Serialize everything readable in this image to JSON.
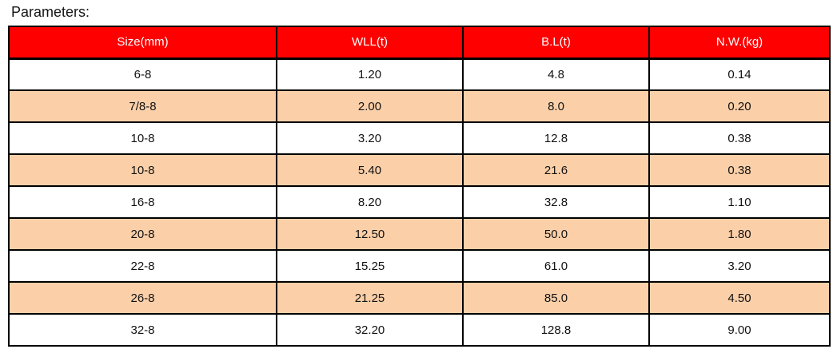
{
  "page_title": "Parameters:",
  "table": {
    "columns": [
      "Size(mm)",
      "WLL(t)",
      "B.L(t)",
      "N.W.(kg)"
    ],
    "rows": [
      [
        "6-8",
        "1.20",
        "4.8",
        "0.14"
      ],
      [
        "7/8-8",
        "2.00",
        "8.0",
        "0.20"
      ],
      [
        "10-8",
        "3.20",
        "12.8",
        "0.38"
      ],
      [
        "10-8",
        "5.40",
        "21.6",
        "0.38"
      ],
      [
        "16-8",
        "8.20",
        "32.8",
        "1.10"
      ],
      [
        "20-8",
        "12.50",
        "50.0",
        "1.80"
      ],
      [
        "22-8",
        "15.25",
        "61.0",
        "3.20"
      ],
      [
        "26-8",
        "21.25",
        "85.0",
        "4.50"
      ],
      [
        "32-8",
        "32.20",
        "128.8",
        "9.00"
      ]
    ],
    "colors": {
      "header_bg": "#fe0000",
      "header_text": "#ffffff",
      "row_bg": "#ffffff",
      "row_alt_bg": "#fbd0a9",
      "border": "#000000"
    }
  },
  "chart_data": {
    "type": "table",
    "title": "Parameters:",
    "columns": [
      "Size(mm)",
      "WLL(t)",
      "B.L(t)",
      "N.W.(kg)"
    ],
    "rows": [
      [
        "6-8",
        "1.20",
        "4.8",
        "0.14"
      ],
      [
        "7/8-8",
        "2.00",
        "8.0",
        "0.20"
      ],
      [
        "10-8",
        "3.20",
        "12.8",
        "0.38"
      ],
      [
        "10-8",
        "5.40",
        "21.6",
        "0.38"
      ],
      [
        "16-8",
        "8.20",
        "32.8",
        "1.10"
      ],
      [
        "20-8",
        "12.50",
        "50.0",
        "1.80"
      ],
      [
        "22-8",
        "15.25",
        "61.0",
        "3.20"
      ],
      [
        "26-8",
        "21.25",
        "85.0",
        "4.50"
      ],
      [
        "32-8",
        "32.20",
        "128.8",
        "9.00"
      ]
    ]
  }
}
